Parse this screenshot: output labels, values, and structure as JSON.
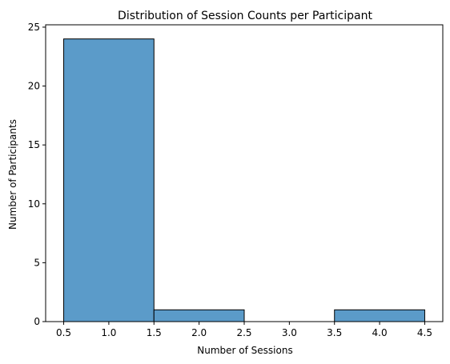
{
  "chart_data": {
    "type": "bar",
    "title": "Distribution of Session Counts per Participant",
    "xlabel": "Number of Sessions",
    "ylabel": "Number of Participants",
    "bins": [
      {
        "start": 0.5,
        "end": 1.5,
        "count": 24
      },
      {
        "start": 1.5,
        "end": 2.5,
        "count": 1
      },
      {
        "start": 2.5,
        "end": 3.5,
        "count": 0
      },
      {
        "start": 3.5,
        "end": 4.5,
        "count": 1
      }
    ],
    "xlim": [
      0.3,
      4.7
    ],
    "ylim": [
      0,
      25.2
    ],
    "xticks": [
      "0.5",
      "1.0",
      "1.5",
      "2.0",
      "2.5",
      "3.0",
      "3.5",
      "4.0",
      "4.5"
    ],
    "yticks": [
      "0",
      "5",
      "10",
      "15",
      "20",
      "25"
    ],
    "grid": false,
    "bar_color": "#5b9bc9",
    "edge_color": "#000000"
  }
}
